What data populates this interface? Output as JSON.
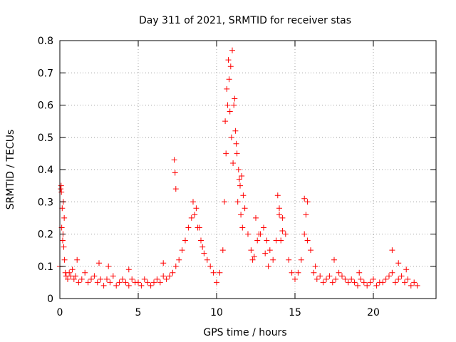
{
  "chart_data": {
    "type": "scatter",
    "title": "Day 311 of 2021, SRMTID for receiver stas",
    "xlabel": "GPS time / hours",
    "ylabel": "SRMTID / TECUs",
    "xlim": [
      0,
      24
    ],
    "ylim": [
      0,
      0.8
    ],
    "xticks": [
      0,
      5,
      10,
      15,
      20
    ],
    "yticks": [
      0,
      0.1,
      0.2,
      0.3,
      0.4,
      0.5,
      0.6,
      0.7,
      0.8
    ],
    "xtick_labels": [
      "0",
      "5",
      "10",
      "15",
      "20"
    ],
    "ytick_labels": [
      "0",
      "0.1",
      "0.2",
      "0.3",
      "0.4",
      "0.5",
      "0.6",
      "0.7",
      "0.8"
    ],
    "grid": true,
    "marker": "+",
    "series": [
      {
        "name": "stas",
        "color": "#ff0000",
        "x": [
          0.0,
          0.05,
          0.1,
          0.15,
          0.2,
          0.25,
          0.3,
          0.35,
          0.4,
          0.5,
          0.6,
          0.7,
          0.8,
          0.9,
          1.0,
          1.2,
          1.4,
          1.6,
          1.8,
          2.0,
          2.2,
          2.4,
          2.6,
          2.8,
          3.0,
          3.2,
          3.4,
          3.6,
          3.8,
          4.0,
          4.2,
          4.4,
          4.6,
          4.8,
          5.0,
          5.2,
          5.4,
          5.6,
          5.8,
          6.0,
          6.2,
          6.4,
          6.6,
          6.8,
          7.0,
          7.2,
          7.4,
          7.6,
          7.8,
          8.0,
          8.2,
          8.4,
          8.6,
          8.8,
          9.0,
          9.2,
          9.4,
          9.6,
          9.8,
          10.0,
          10.2,
          10.4,
          10.5,
          10.6,
          10.7,
          10.8,
          10.9,
          11.0,
          11.1,
          11.2,
          11.3,
          11.4,
          11.5,
          11.6,
          11.7,
          11.8,
          12.0,
          12.2,
          12.4,
          12.6,
          12.8,
          13.0,
          13.2,
          13.4,
          13.6,
          13.8,
          14.0,
          14.2,
          14.4,
          14.6,
          14.8,
          15.0,
          15.2,
          15.4,
          15.6,
          15.8,
          16.0,
          16.2,
          16.4,
          16.6,
          16.8,
          17.0,
          17.2,
          17.4,
          17.6,
          17.8,
          18.0,
          18.2,
          18.4,
          18.6,
          18.8,
          19.0,
          19.2,
          19.4,
          19.6,
          19.8,
          20.0,
          20.2,
          20.4,
          20.6,
          20.8,
          21.0,
          21.2,
          21.4,
          21.6,
          21.8,
          22.0,
          22.2,
          22.4,
          22.6,
          22.8,
          0.08,
          0.12,
          0.18,
          0.22,
          0.28,
          7.3,
          7.35,
          7.4,
          10.55,
          10.65,
          10.75,
          10.85,
          10.95,
          11.05,
          11.15,
          11.25,
          11.35,
          11.45,
          11.55,
          11.65,
          13.9,
          14.0,
          14.1,
          14.2,
          15.6,
          15.7,
          15.8,
          8.5,
          8.7,
          8.9,
          9.1,
          12.3,
          12.5,
          12.7,
          13.1,
          13.3,
          16.3,
          17.5,
          19.1,
          21.2,
          21.6,
          22.1,
          3.1,
          4.4,
          6.6,
          1.1,
          2.5
        ],
        "y": [
          0.1,
          0.34,
          0.33,
          0.28,
          0.2,
          0.16,
          0.12,
          0.08,
          0.07,
          0.06,
          0.08,
          0.07,
          0.09,
          0.06,
          0.07,
          0.05,
          0.06,
          0.08,
          0.05,
          0.06,
          0.07,
          0.05,
          0.06,
          0.04,
          0.06,
          0.05,
          0.07,
          0.04,
          0.05,
          0.06,
          0.05,
          0.04,
          0.06,
          0.05,
          0.05,
          0.04,
          0.06,
          0.05,
          0.04,
          0.05,
          0.06,
          0.05,
          0.07,
          0.06,
          0.07,
          0.08,
          0.1,
          0.12,
          0.15,
          0.18,
          0.22,
          0.25,
          0.26,
          0.22,
          0.18,
          0.14,
          0.12,
          0.1,
          0.08,
          0.05,
          0.08,
          0.15,
          0.3,
          0.45,
          0.6,
          0.68,
          0.72,
          0.77,
          0.6,
          0.52,
          0.45,
          0.4,
          0.35,
          0.38,
          0.32,
          0.28,
          0.2,
          0.15,
          0.13,
          0.18,
          0.2,
          0.22,
          0.18,
          0.15,
          0.12,
          0.18,
          0.28,
          0.25,
          0.2,
          0.12,
          0.08,
          0.06,
          0.08,
          0.12,
          0.2,
          0.3,
          0.15,
          0.08,
          0.06,
          0.07,
          0.05,
          0.06,
          0.07,
          0.05,
          0.06,
          0.08,
          0.07,
          0.06,
          0.05,
          0.06,
          0.05,
          0.04,
          0.06,
          0.05,
          0.04,
          0.05,
          0.06,
          0.04,
          0.05,
          0.05,
          0.06,
          0.07,
          0.08,
          0.05,
          0.06,
          0.07,
          0.05,
          0.06,
          0.04,
          0.05,
          0.04,
          0.35,
          0.22,
          0.18,
          0.3,
          0.25,
          0.43,
          0.39,
          0.34,
          0.55,
          0.65,
          0.74,
          0.58,
          0.5,
          0.42,
          0.62,
          0.48,
          0.3,
          0.37,
          0.26,
          0.22,
          0.32,
          0.26,
          0.18,
          0.21,
          0.31,
          0.26,
          0.18,
          0.3,
          0.28,
          0.22,
          0.16,
          0.12,
          0.25,
          0.2,
          0.14,
          0.1,
          0.1,
          0.12,
          0.08,
          0.15,
          0.11,
          0.09,
          0.1,
          0.09,
          0.11,
          0.12,
          0.11
        ]
      }
    ]
  }
}
